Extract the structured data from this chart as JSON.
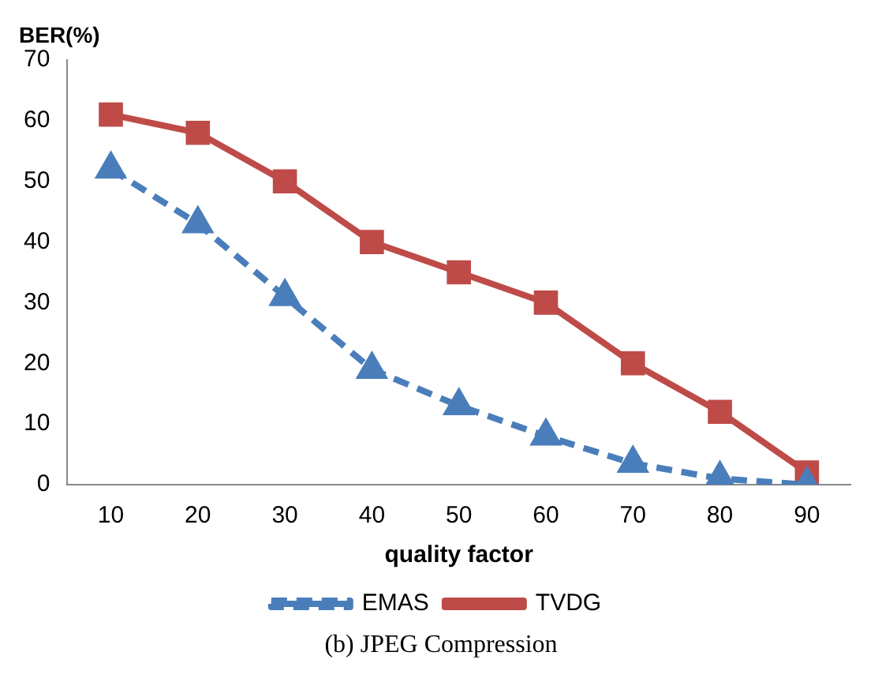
{
  "chart_data": {
    "type": "line",
    "xlabel": "quality factor",
    "ylabel": "BER(%)",
    "categories": [
      "10",
      "20",
      "30",
      "40",
      "50",
      "60",
      "70",
      "80",
      "90"
    ],
    "series": [
      {
        "name": "EMAS",
        "color": "#4a7ebb",
        "marker": "triangle",
        "line_style": "dashed",
        "values": [
          52,
          43,
          31,
          19,
          13,
          8,
          3.5,
          1,
          0
        ]
      },
      {
        "name": "TVDG",
        "color": "#be4b48",
        "marker": "square",
        "line_style": "solid",
        "values": [
          61,
          58,
          50,
          40,
          35,
          30,
          20,
          12,
          2
        ]
      }
    ],
    "ylim": [
      0,
      70
    ],
    "yticks": [
      0,
      10,
      20,
      30,
      40,
      50,
      60,
      70
    ],
    "grid": false,
    "legend": "bottom",
    "annotations": [
      "(b) JPEG Compression"
    ]
  }
}
